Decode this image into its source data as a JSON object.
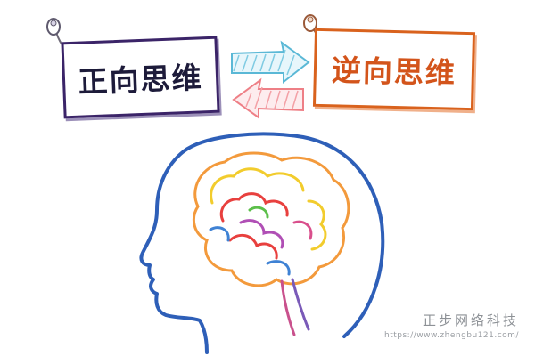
{
  "labels": {
    "forward_thinking": "正向思维",
    "reverse_thinking": "逆向思维"
  },
  "watermark": {
    "title": "正步网络科技",
    "url": "https://www.zhengbu121.com/"
  },
  "colors": {
    "left_tag_border": "#3b2468",
    "right_tag_border": "#d9621d",
    "right_arrow": "#5ab8d6",
    "left_arrow": "#ee7f86",
    "head_outline": "#2e5fb8"
  },
  "icons": {
    "right_arrow": "arrow-right-icon",
    "left_arrow": "arrow-left-icon",
    "pin": "pin-icon",
    "head": "head-profile-icon",
    "brain": "brain-icon"
  }
}
